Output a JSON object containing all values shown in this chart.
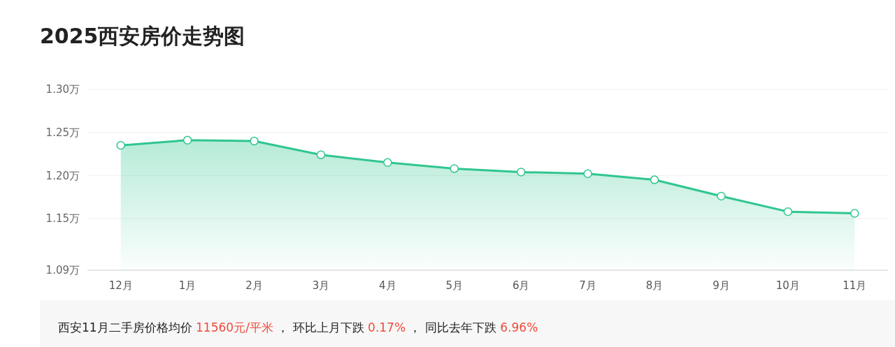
{
  "chart_data": {
    "type": "area",
    "title": "2025西安房价走势图",
    "categories": [
      "12月",
      "1月",
      "2月",
      "3月",
      "4月",
      "5月",
      "6月",
      "7月",
      "8月",
      "9月",
      "10月",
      "11月"
    ],
    "series": [
      {
        "color": "#2fc68f",
        "values": [
          1.235,
          1.241,
          1.24,
          1.224,
          1.215,
          1.208,
          1.204,
          1.202,
          1.195,
          1.176,
          1.158,
          1.156
        ]
      }
    ],
    "ylim": [
      1.09,
      1.3
    ],
    "yticks": [
      {
        "value": 1.09,
        "label": "1.09万"
      },
      {
        "value": 1.15,
        "label": "1.15万"
      },
      {
        "value": 1.2,
        "label": "1.20万"
      },
      {
        "value": 1.25,
        "label": "1.25万"
      },
      {
        "value": 1.3,
        "label": "1.30万"
      }
    ],
    "grid": "y",
    "marker": "circle",
    "annotations": [
      "西安11月二手房价格均价 ",
      "11560元/平米",
      " ， 环比上月下跌 ",
      "0.17%",
      " ， 同比去年下跌 ",
      "6.96%"
    ]
  }
}
